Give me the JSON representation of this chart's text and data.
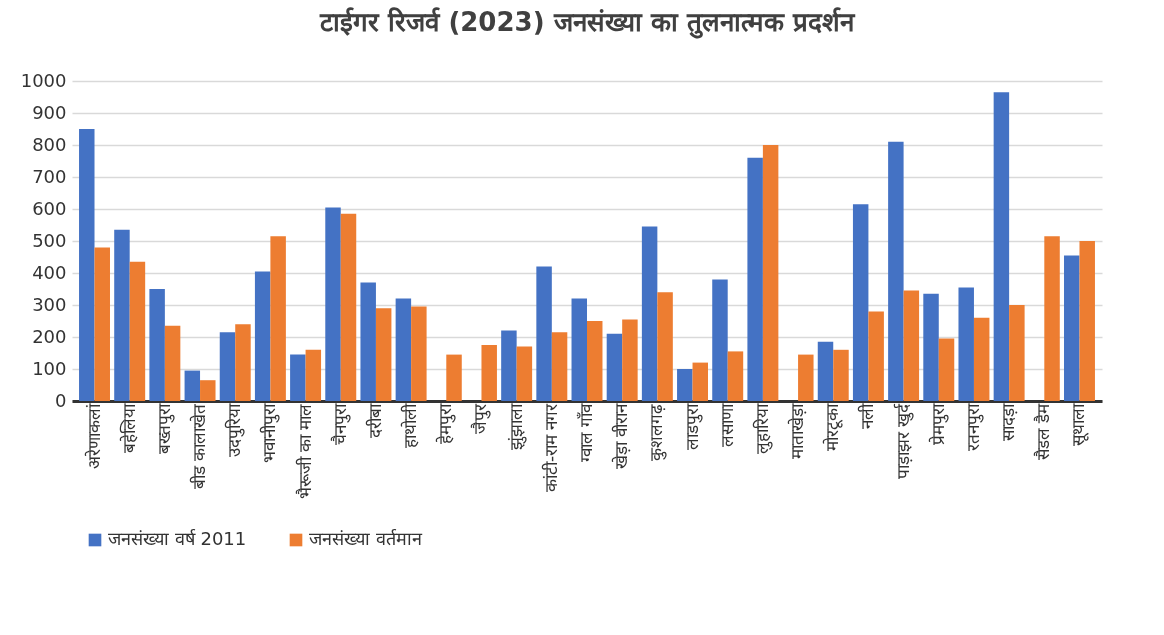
{
  "chart_data": {
    "type": "bar",
    "title": "टाईगर रिजर्व (2023) जनसंख्या का तुलनात्मक प्रदर्शन",
    "categories": [
      "अरेणाकलां",
      "बहेलिया",
      "बख्तपुरा",
      "बीड कालाखेत",
      "उदपुरिया",
      "भवानीपुरा",
      "भैरूजी का माल",
      "चैनपुरा",
      "दरीबा",
      "हाथोली",
      "हेमपुरा",
      "जैपुर",
      "झुंझाला",
      "कांटी-राम नगर",
      "ग्वाल गाँव",
      "खेड़ा वीरान",
      "कुशलगढ़",
      "लाडपुरा",
      "लसाणा",
      "लुहारिया",
      "माताखेड़ा",
      "मोरटूका",
      "नली",
      "पाड़ाझर खुर्द",
      "प्रेमपुरा",
      "रतनपुरा",
      "सादड़ा",
      "सैडल डैम",
      "सूथाला"
    ],
    "series": [
      {
        "name": "जनसंख्या वर्ष 2011",
        "color": "#4472c4",
        "values": [
          850,
          535,
          350,
          95,
          215,
          405,
          145,
          605,
          370,
          320,
          0,
          0,
          220,
          420,
          320,
          210,
          545,
          100,
          380,
          760,
          0,
          185,
          615,
          810,
          335,
          355,
          965,
          0,
          455
        ]
      },
      {
        "name": "जनसंख्या वर्तमान",
        "color": "#ed7d31",
        "values": [
          480,
          435,
          235,
          65,
          240,
          515,
          160,
          585,
          290,
          295,
          145,
          175,
          170,
          215,
          250,
          255,
          340,
          120,
          155,
          800,
          145,
          160,
          280,
          345,
          195,
          260,
          300,
          515,
          500
        ]
      }
    ],
    "ylim": [
      0,
      1000
    ],
    "yticks": [
      0,
      100,
      200,
      300,
      400,
      500,
      600,
      700,
      800,
      900,
      1000
    ],
    "grid": "y",
    "legend": "bottom"
  }
}
